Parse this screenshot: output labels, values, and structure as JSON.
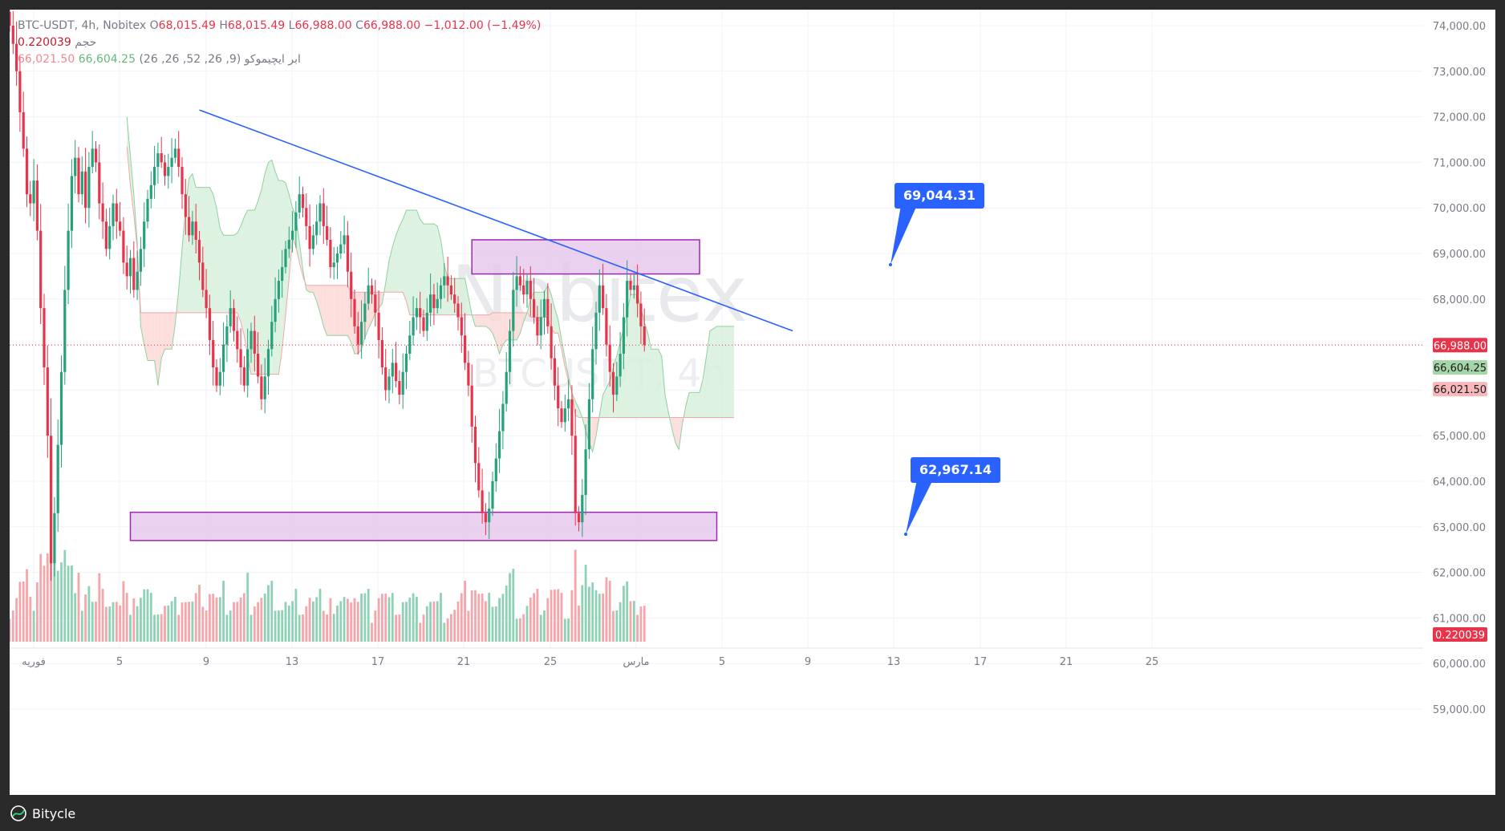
{
  "legend": {
    "symbol": "BTC-USDT, 4h, Nobitex",
    "open_label": "O",
    "open": "68,015.49",
    "high_label": "H",
    "high": "68,015.49",
    "low_label": "L",
    "low": "66,988.00",
    "close_label": "C",
    "close": "66,988.00",
    "change": "−1,012.00 (−1.49%)",
    "volume_label": "حجم",
    "volume": "0.220039",
    "ichimoku_label": "ابر ایچیموکو (9, 26, 52, 26, 26)",
    "ichimoku_a": "66,604.25",
    "ichimoku_b": "66,021.50"
  },
  "watermark": {
    "line1": "Nobitex",
    "line2": "BTCUSDT, 4h"
  },
  "footer": {
    "brand": "Bitycle"
  },
  "colors": {
    "up": "#26a17b",
    "down": "#e8344b",
    "up_volume": "#8ed1b4",
    "down_volume": "#f4a6aa",
    "trendline": "#2962ff",
    "zone_fill": "#e6c6ec",
    "zone_border": "#9c27b0",
    "cloud_bear": "#fcd9d7",
    "cloud_bull": "#d7f0dc",
    "label_blue": "#2962ff"
  },
  "chart_data": {
    "type": "candlestick",
    "symbol": "BTC-USDT",
    "timeframe": "4h",
    "y_ticks": [
      "74,000.00",
      "73,000.00",
      "72,000.00",
      "71,000.00",
      "70,000.00",
      "69,000.00",
      "68,000.00",
      "67,000.00",
      "66,000.00",
      "65,000.00",
      "64,000.00",
      "63,000.00",
      "62,000.00",
      "61,000.00",
      "60,000.00",
      "59,000.00"
    ],
    "y_range": [
      58000,
      74500
    ],
    "x_ticks": [
      "فوریه",
      "5",
      "9",
      "13",
      "17",
      "21",
      "25",
      "مارس",
      "5",
      "9",
      "13",
      "17",
      "21",
      "25"
    ],
    "price_labels": {
      "last": "66,988.00",
      "senkou_a": "66,604.25",
      "senkou_b": "66,021.50",
      "volume": "0.220039"
    },
    "annotations": [
      {
        "text": "69,044.31",
        "price": 69044.31
      },
      {
        "text": "62,967.14",
        "price": 62967.14
      }
    ],
    "zones": [
      {
        "name": "resistance",
        "top": 69300,
        "bottom": 68550,
        "from_bar": 134,
        "to_bar": 200
      },
      {
        "name": "support",
        "top": 63320,
        "bottom": 62700,
        "from_bar": 35,
        "to_bar": 205
      }
    ],
    "trendline": {
      "from": {
        "bar": 55,
        "price": 72150
      },
      "to": {
        "bar": 227,
        "price": 67300
      }
    },
    "closes": [
      74000,
      73600,
      73000,
      72100,
      71300,
      70300,
      70100,
      70600,
      69500,
      67800,
      66500,
      65000,
      62200,
      63300,
      64800,
      66400,
      68200,
      69500,
      70700,
      71100,
      70300,
      70800,
      70000,
      70900,
      71300,
      71000,
      70100,
      69700,
      69100,
      69600,
      70100,
      69700,
      69500,
      68800,
      68500,
      68900,
      68200,
      68600,
      69100,
      69700,
      70200,
      70500,
      70900,
      71200,
      71000,
      70700,
      70900,
      71100,
      71300,
      70900,
      70300,
      69800,
      69400,
      69700,
      69300,
      68800,
      68200,
      67800,
      67100,
      66500,
      66100,
      66400,
      67000,
      67400,
      67800,
      67300,
      66900,
      66500,
      66100,
      66900,
      67300,
      66800,
      66300,
      65800,
      66300,
      66900,
      67500,
      68000,
      68400,
      68700,
      69100,
      69300,
      69500,
      69900,
      70300,
      70000,
      69600,
      69100,
      69400,
      69700,
      70100,
      69600,
      69300,
      68700,
      68800,
      69000,
      69200,
      69400,
      68600,
      68000,
      67400,
      67000,
      67500,
      67900,
      68300,
      68100,
      67700,
      67100,
      66500,
      66000,
      66300,
      66600,
      66200,
      65900,
      66400,
      66800,
      67200,
      67600,
      67800,
      67600,
      67300,
      67700,
      68100,
      67800,
      68000,
      68300,
      68500,
      68300,
      68100,
      67900,
      67600,
      67200,
      66600,
      66100,
      65200,
      64400,
      63800,
      63300,
      63100,
      63400,
      64000,
      64500,
      65100,
      65700,
      66400,
      67300,
      68200,
      68500,
      68300,
      68100,
      68400,
      68000,
      67600,
      67200,
      67600,
      68000,
      67400,
      66700,
      66100,
      65600,
      65300,
      65600,
      65800,
      65000,
      63300,
      63100,
      63700,
      64700,
      65800,
      66900,
      67700,
      68300,
      67800,
      67000,
      66400,
      65900,
      66300,
      66800,
      67600,
      68400,
      68200,
      68300,
      67900,
      67400,
      66988
    ]
  }
}
